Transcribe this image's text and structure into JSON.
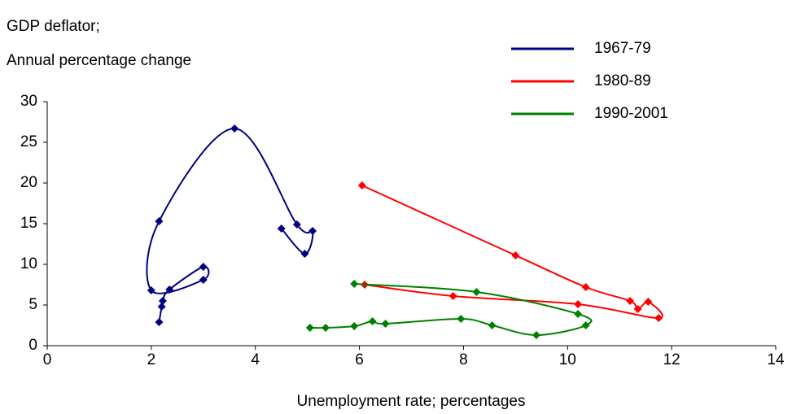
{
  "chart_data": {
    "type": "scatter",
    "title": "GDP deflator;",
    "subtitle": "Annual percentage change",
    "x_label": "Unemployment rate; percentages",
    "xlim": [
      0,
      14
    ],
    "xticks": [
      0,
      2,
      4,
      6,
      8,
      10,
      12,
      14
    ],
    "ylim": [
      0,
      30
    ],
    "yticks": [
      0,
      5,
      10,
      15,
      20,
      25,
      30
    ],
    "legend": "top-right",
    "series": [
      {
        "name": "1967-79",
        "color": "#000080",
        "x": [
          2.15,
          2.2,
          2.22,
          2.35,
          3.0,
          3.0,
          2.0,
          2.15,
          3.6,
          4.8,
          5.1,
          4.95,
          4.5
        ],
        "values": [
          2.9,
          4.8,
          5.5,
          6.9,
          9.7,
          8.1,
          6.8,
          15.3,
          26.7,
          14.9,
          14.1,
          11.3,
          14.4
        ]
      },
      {
        "name": "1980-89",
        "color": "#ff0000",
        "x": [
          6.05,
          9.0,
          10.35,
          11.2,
          11.35,
          11.55,
          11.75,
          10.2,
          7.8,
          6.1
        ],
        "values": [
          19.7,
          11.1,
          7.2,
          5.5,
          4.5,
          5.4,
          3.4,
          5.1,
          6.1,
          7.5
        ]
      },
      {
        "name": "1990-2001",
        "color": "#008000",
        "x": [
          5.9,
          8.25,
          10.2,
          10.35,
          9.4,
          8.55,
          7.95,
          6.5,
          6.25,
          5.9,
          5.35,
          5.05
        ],
        "values": [
          7.6,
          6.6,
          3.9,
          2.5,
          1.3,
          2.5,
          3.3,
          2.7,
          3.0,
          2.4,
          2.2,
          2.2
        ]
      }
    ]
  }
}
